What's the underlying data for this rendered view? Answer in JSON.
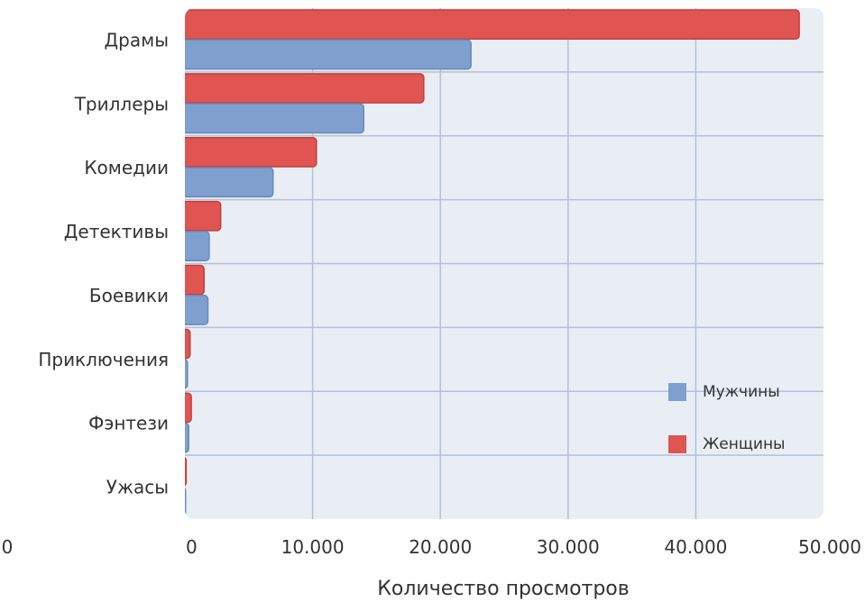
{
  "chart_data": {
    "type": "bar",
    "orientation": "horizontal",
    "categories": [
      "Драмы",
      "Триллеры",
      "Комедии",
      "Детективы",
      "Боевики",
      "Приключения",
      "Фэнтези",
      "Ужасы"
    ],
    "series": [
      {
        "name": "Женщины",
        "color": "#e05552",
        "values": [
          48100,
          18700,
          10300,
          2800,
          1500,
          400,
          500,
          100
        ]
      },
      {
        "name": "Мужчины",
        "color": "#7f9fcf",
        "values": [
          22400,
          14000,
          6900,
          1900,
          1800,
          200,
          300,
          50
        ]
      }
    ],
    "xlabel": "Количество просмотров",
    "xlim": [
      0,
      50000
    ],
    "x_ticks": [
      0,
      10000,
      20000,
      30000,
      40000,
      50000
    ],
    "x_tick_labels": [
      "0",
      "10.000",
      "20.000",
      "30.000",
      "40.000",
      "50.000"
    ],
    "extra_left_label": "0",
    "legend": {
      "position": "right",
      "entries": [
        "Мужчины",
        "Женщины"
      ]
    },
    "grid": true,
    "plot_background": "#e9eef5",
    "grid_color": "#b3c0d6"
  }
}
